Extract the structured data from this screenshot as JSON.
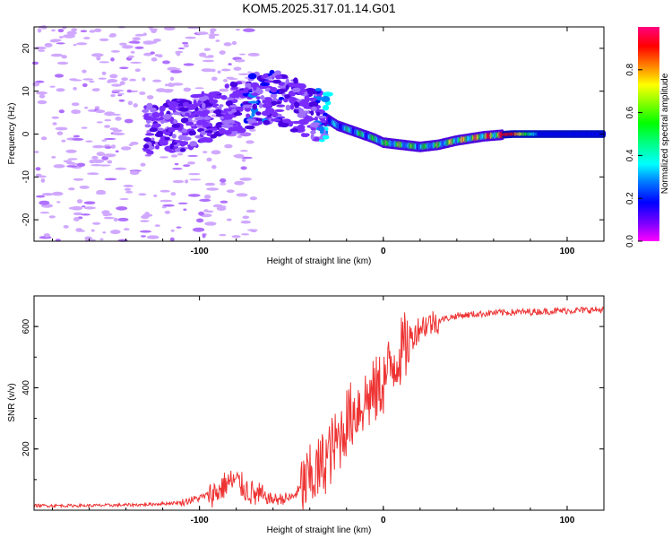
{
  "title": "KOM5.2025.317.01.14.G01",
  "chart_data": [
    {
      "type": "heatmap",
      "title": "KOM5.2025.317.01.14.G01",
      "xlabel": "Height of straight line (km)",
      "ylabel": "Frequency (Hz)",
      "xlim": [
        -190,
        120
      ],
      "ylim": [
        -25,
        25
      ],
      "xticks": [
        -100,
        0,
        100
      ],
      "yticks": [
        -20,
        -10,
        0,
        10,
        20
      ],
      "colorbar": {
        "label": "Normalized spectral amplitude",
        "range": [
          0,
          1
        ],
        "ticks": [
          0.0,
          0.2,
          0.4,
          0.6,
          0.8
        ],
        "colormap": [
          "#ff00ff",
          "#8000ff",
          "#0000ff",
          "#0080ff",
          "#00ffff",
          "#00ff80",
          "#00ff00",
          "#80ff00",
          "#ffff00",
          "#ff8000",
          "#ff0000",
          "#ff0080"
        ]
      },
      "ridge": {
        "description": "dominant Doppler frequency track",
        "x": [
          -130,
          -110,
          -95,
          -80,
          -70,
          -60,
          -50,
          -40,
          -32,
          -25,
          -15,
          -5,
          0,
          10,
          20,
          30,
          40,
          55,
          70,
          85,
          100,
          120
        ],
        "y": [
          1,
          2,
          4,
          6,
          8,
          9,
          7,
          5,
          4,
          2,
          0.5,
          -1,
          -2,
          -2.5,
          -3,
          -2.5,
          -1.5,
          -0.5,
          0,
          0,
          0,
          0
        ],
        "amplitude": [
          0.05,
          0.08,
          0.12,
          0.15,
          0.2,
          0.18,
          0.15,
          0.12,
          0.3,
          0.4,
          0.5,
          0.55,
          0.6,
          0.65,
          0.55,
          0.6,
          0.75,
          0.9,
          0.95,
          0.2,
          0.15,
          0.15
        ]
      }
    },
    {
      "type": "line",
      "xlabel": "Height of straight line (km)",
      "ylabel": "SNR (v/v)",
      "xlim": [
        -190,
        120
      ],
      "ylim": [
        0,
        700
      ],
      "xticks": [
        -100,
        0,
        100
      ],
      "yticks": [
        200,
        400,
        600
      ],
      "series": [
        {
          "name": "SNR",
          "color": "#ee3333",
          "x": [
            -190,
            -160,
            -130,
            -110,
            -100,
            -90,
            -85,
            -80,
            -75,
            -70,
            -60,
            -50,
            -40,
            -35,
            -30,
            -25,
            -20,
            -15,
            -10,
            -5,
            0,
            5,
            10,
            15,
            20,
            30,
            40,
            50,
            60,
            80,
            100,
            120
          ],
          "y": [
            15,
            15,
            18,
            25,
            40,
            60,
            90,
            95,
            70,
            50,
            35,
            40,
            100,
            130,
            180,
            220,
            290,
            330,
            360,
            380,
            420,
            480,
            520,
            560,
            600,
            620,
            635,
            640,
            645,
            648,
            652,
            655
          ]
        }
      ]
    }
  ]
}
